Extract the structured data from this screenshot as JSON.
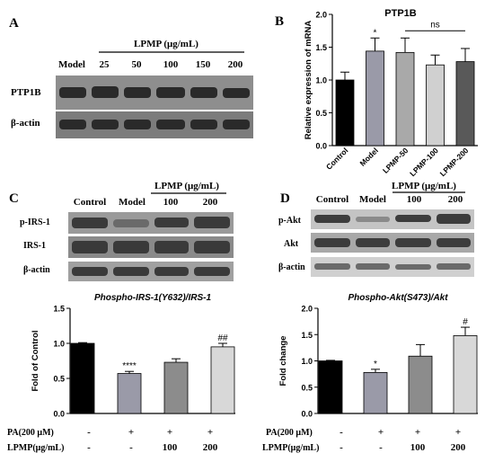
{
  "panel_labels": {
    "a": "A",
    "b": "B",
    "c": "C",
    "d": "D"
  },
  "colors": {
    "control": "#000000",
    "model": "#9a9aa8",
    "lpmp50": "#a9a9a9",
    "lpmp100": "#8c8c8c",
    "lpmp200": "#d8d8d8",
    "lpmp200_b": "#595959"
  },
  "panel_a": {
    "treatment_header": "LPMP (μg/mL)",
    "lanes": [
      "Model",
      "25",
      "50",
      "100",
      "150",
      "200"
    ],
    "rows": [
      "PTP1B",
      "β-actin"
    ]
  },
  "panel_c_blot": {
    "treatment_header": "LPMP (μg/mL)",
    "lanes": [
      "Control",
      "Model",
      "100",
      "200"
    ],
    "rows": [
      "p-IRS-1",
      "IRS-1",
      "β-actin"
    ]
  },
  "panel_d_blot": {
    "treatment_header": "LPMP (μg/mL)",
    "lanes": [
      "Control",
      "Model",
      "100",
      "200"
    ],
    "rows": [
      "p-Akt",
      "Akt",
      "β-actin"
    ]
  },
  "treatment_table": {
    "row1_label": "PA(200 μM)",
    "row2_label": "LPMP(μg/mL)",
    "row1_values": [
      "-",
      "+",
      "+",
      "+"
    ],
    "row2_values": [
      "-",
      "-",
      "100",
      "200"
    ]
  },
  "chart_data": [
    {
      "id": "B",
      "type": "bar",
      "title": "PTP1B",
      "xlabel": "",
      "ylabel": "Relative expression of mRNA",
      "ylim": [
        0,
        2.0
      ],
      "yticks": [
        "0.0",
        "0.5",
        "1.0",
        "1.5",
        "2.0"
      ],
      "categories": [
        "Control",
        "Model",
        "LPMP-50",
        "LPMP-100",
        "LPMP-200"
      ],
      "values": [
        1.0,
        1.44,
        1.42,
        1.23,
        1.28
      ],
      "errors": [
        0.12,
        0.2,
        0.22,
        0.15,
        0.2
      ],
      "bar_colors": [
        "#000000",
        "#9a9aa8",
        "#a9a9a9",
        "#d0d0d0",
        "#595959"
      ],
      "annotations": [
        {
          "category": "Model",
          "text": "*"
        }
      ],
      "bracket": {
        "from": "LPMP-50",
        "to": "LPMP-200",
        "text": "ns"
      }
    },
    {
      "id": "C",
      "type": "bar",
      "title": "Phospho-IRS-1(Y632)/IRS-1",
      "xlabel": "",
      "ylabel": "Fold of Control",
      "ylim": [
        0,
        1.5
      ],
      "yticks": [
        "0.0",
        "0.5",
        "1.0",
        "1.5"
      ],
      "categories": [
        "Control",
        "Model",
        "LPMP-100",
        "LPMP-200"
      ],
      "values": [
        1.0,
        0.57,
        0.73,
        0.95
      ],
      "errors": [
        0.01,
        0.03,
        0.05,
        0.05
      ],
      "bar_colors": [
        "#000000",
        "#9a9aa8",
        "#8c8c8c",
        "#d8d8d8"
      ],
      "annotations": [
        {
          "category": "Model",
          "text": "****"
        },
        {
          "category": "LPMP-200",
          "text": "##"
        }
      ]
    },
    {
      "id": "D",
      "type": "bar",
      "title": "Phospho-Akt(S473)/Akt",
      "xlabel": "",
      "ylabel": "Fold change",
      "ylim": [
        0,
        2.0
      ],
      "yticks": [
        "0.0",
        "0.5",
        "1.0",
        "1.5",
        "2.0"
      ],
      "categories": [
        "Control",
        "Model",
        "LPMP-100",
        "LPMP-200"
      ],
      "values": [
        1.0,
        0.78,
        1.09,
        1.48
      ],
      "errors": [
        0.01,
        0.06,
        0.22,
        0.16
      ],
      "bar_colors": [
        "#000000",
        "#9a9aa8",
        "#8c8c8c",
        "#d8d8d8"
      ],
      "annotations": [
        {
          "category": "Model",
          "text": "*"
        },
        {
          "category": "LPMP-200",
          "text": "#"
        }
      ]
    }
  ]
}
